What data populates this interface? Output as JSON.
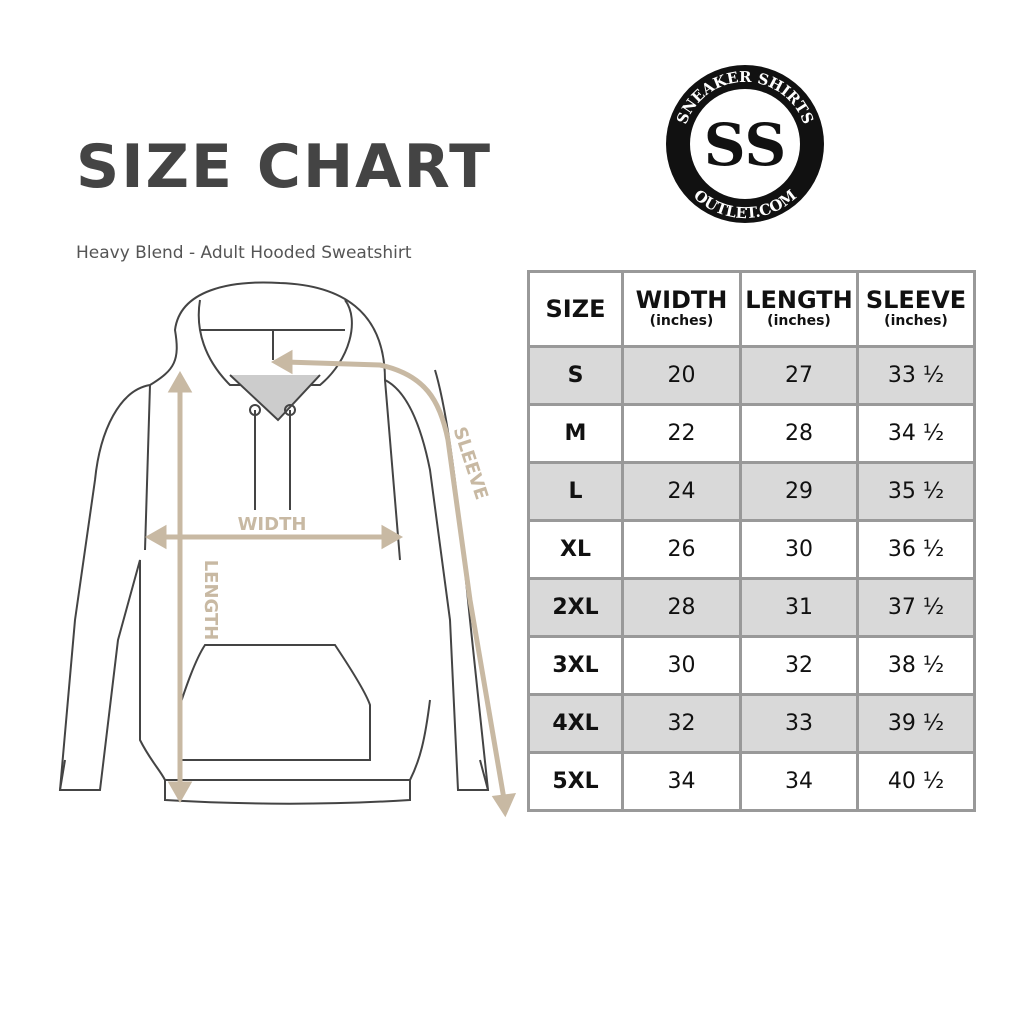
{
  "header": {
    "title": "SIZE CHART",
    "subtitle": "Heavy Blend - Adult Hooded Sweatshirt"
  },
  "logo": {
    "text_top": "SNEAKER SHIRTS",
    "text_bottom": "OUTLET.COM",
    "monogram": "SS"
  },
  "diagram": {
    "labels": {
      "width": "WIDTH",
      "length": "LENGTH",
      "sleeve": "SLEEVE"
    },
    "arrow_color": "#c8b9a3"
  },
  "table": {
    "headers": [
      {
        "label": "SIZE",
        "unit": ""
      },
      {
        "label": "WIDTH",
        "unit": "(inches)"
      },
      {
        "label": "LENGTH",
        "unit": "(inches)"
      },
      {
        "label": "SLEEVE",
        "unit": "(inches)"
      }
    ],
    "rows": [
      [
        "S",
        "20",
        "27",
        "33 ½"
      ],
      [
        "M",
        "22",
        "28",
        "34 ½"
      ],
      [
        "L",
        "24",
        "29",
        "35 ½"
      ],
      [
        "XL",
        "26",
        "30",
        "36 ½"
      ],
      [
        "2XL",
        "28",
        "31",
        "37 ½"
      ],
      [
        "3XL",
        "30",
        "32",
        "38 ½"
      ],
      [
        "4XL",
        "32",
        "33",
        "39 ½"
      ],
      [
        "5XL",
        "34",
        "34",
        "40 ½"
      ]
    ]
  }
}
